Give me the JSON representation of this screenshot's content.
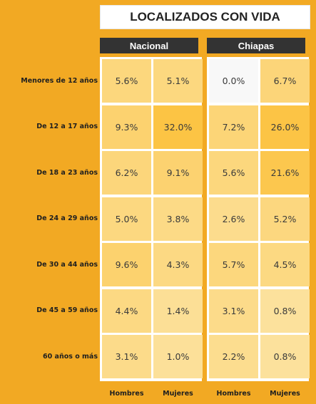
{
  "title": "LOCALIZADOS CON VIDA",
  "chart_data": {
    "type": "heatmap",
    "title": "LOCALIZADOS CON VIDA",
    "panels": [
      "Nacional",
      "Chiapas"
    ],
    "rows": [
      "Menores de 12 años",
      "De 12 a 17 años",
      "De 18 a 23 años",
      "De 24 a 29 años",
      "De 30 a 44 años",
      "De 45 a 59 años",
      "60 años o más"
    ],
    "columns": [
      "Hombres",
      "Mujeres"
    ],
    "values": {
      "Nacional": [
        [
          5.6,
          5.1
        ],
        [
          9.3,
          32.0
        ],
        [
          6.2,
          9.1
        ],
        [
          5.0,
          3.8
        ],
        [
          9.6,
          4.3
        ],
        [
          4.4,
          1.4
        ],
        [
          3.1,
          1.0
        ]
      ],
      "Chiapas": [
        [
          0.0,
          6.7
        ],
        [
          7.2,
          26.0
        ],
        [
          5.6,
          21.6
        ],
        [
          2.6,
          5.2
        ],
        [
          5.7,
          4.5
        ],
        [
          3.1,
          0.8
        ],
        [
          2.2,
          0.8
        ]
      ]
    },
    "unit": "%",
    "color_scale": {
      "low": "#f8f8f8",
      "high": "#fcc444"
    }
  }
}
